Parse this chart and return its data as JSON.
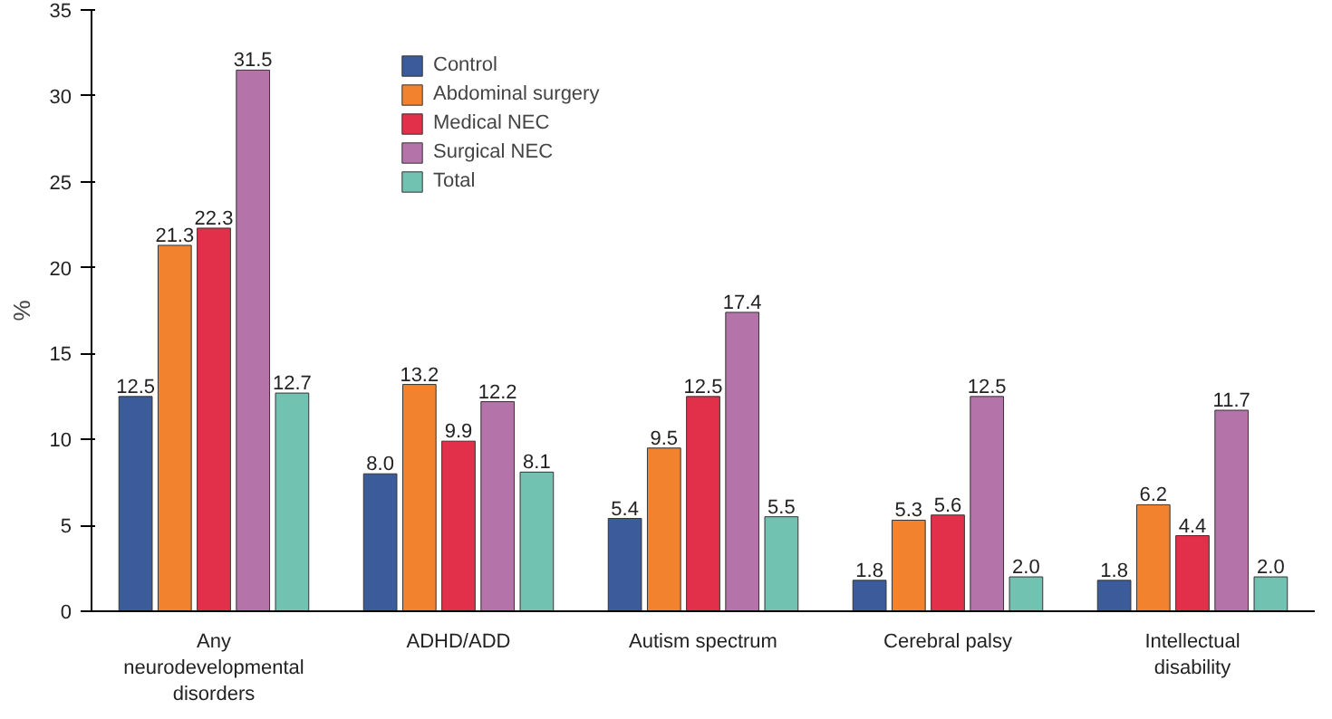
{
  "chart_data": {
    "type": "bar",
    "ylabel": "%",
    "categories": [
      "Any neurodevelopmental disorders",
      "ADHD/ADD",
      "Autism spectrum",
      "Cerebral palsy",
      "Intellectual disability"
    ],
    "series": [
      {
        "name": "Control",
        "color": "#3b5b9b",
        "values": [
          12.5,
          8.0,
          5.4,
          1.8,
          1.8
        ],
        "value_labels": [
          "12.5",
          "8.0",
          "5.4",
          "1.8",
          "1.8"
        ]
      },
      {
        "name": "Abdominal surgery",
        "color": "#f2822e",
        "values": [
          21.3,
          13.2,
          9.5,
          5.3,
          6.2
        ],
        "value_labels": [
          "21.3",
          "13.2",
          "9.5",
          "5.3",
          "6.2"
        ]
      },
      {
        "name": "Medical NEC",
        "color": "#e2304a",
        "values": [
          22.3,
          9.9,
          12.5,
          5.6,
          4.4
        ],
        "value_labels": [
          "22.3",
          "9.9",
          "12.5",
          "5.6",
          "4.4"
        ]
      },
      {
        "name": "Surgical NEC",
        "color": "#b474aa",
        "values": [
          31.5,
          12.2,
          17.4,
          12.5,
          11.7
        ],
        "value_labels": [
          "31.5",
          "12.2",
          "17.4",
          "12.5",
          "11.7"
        ]
      },
      {
        "name": "Total",
        "color": "#72c2b2",
        "values": [
          12.7,
          8.1,
          5.5,
          2.0,
          2.0
        ],
        "value_labels": [
          "12.7",
          "8.1",
          "5.5",
          "2.0",
          "2.0"
        ]
      }
    ],
    "ylim": [
      0,
      35
    ],
    "yticks": [
      0,
      5,
      10,
      15,
      20,
      25,
      30,
      35
    ],
    "grid": false,
    "legend": "top"
  }
}
